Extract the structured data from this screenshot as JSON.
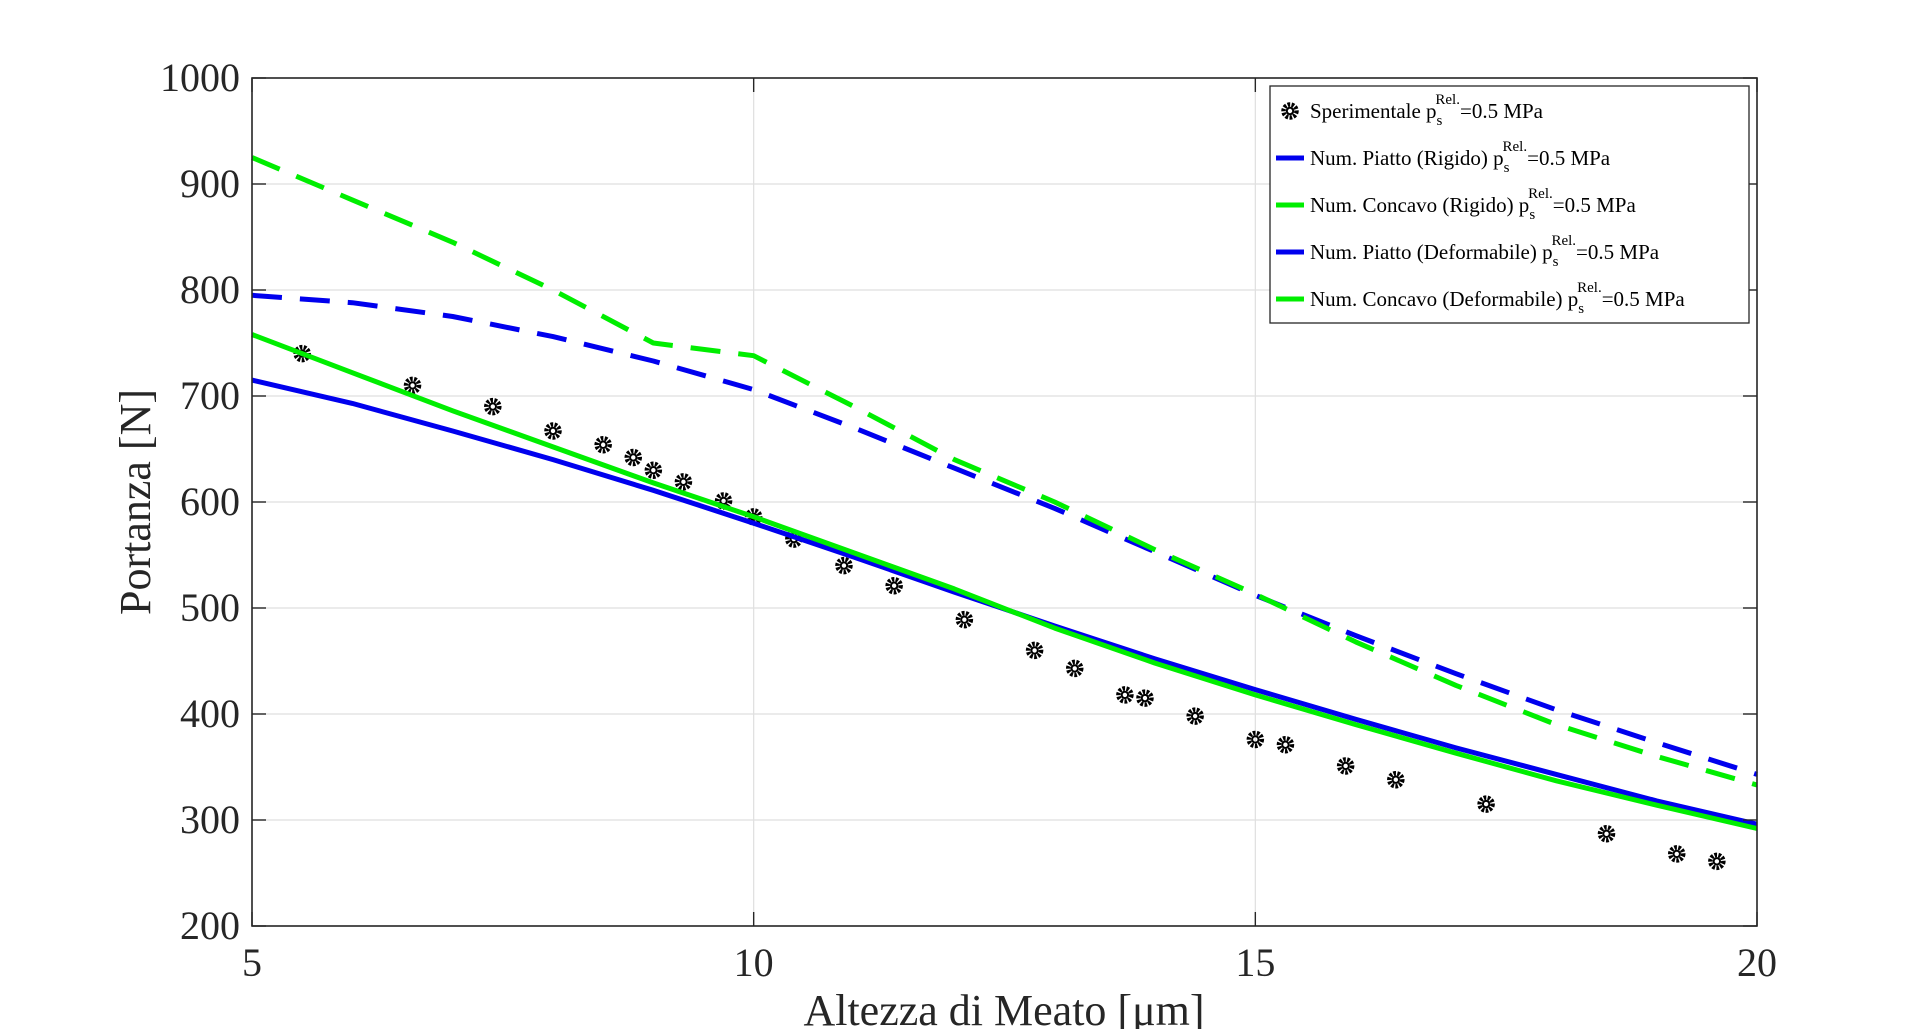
{
  "chart_data": {
    "type": "line",
    "xlabel": "Altezza di Meato [μm]",
    "ylabel": "Portanza [N]",
    "xlim": [
      5,
      20
    ],
    "ylim": [
      200,
      1000
    ],
    "xticks": [
      "5",
      "10",
      "15",
      "20"
    ],
    "yticks": [
      "200",
      "300",
      "400",
      "500",
      "600",
      "700",
      "800",
      "900",
      "1000"
    ],
    "grid": true,
    "legend_position": "top-right",
    "colors": {
      "blue": "#0000ee",
      "green": "#00ee00",
      "markers": "#000000"
    },
    "series": [
      {
        "name": "Sperimentale p_s^Rel.=0.5 MPa",
        "legend_main": "Sperimentale p",
        "legend_sub": "s",
        "legend_sup": "Rel.",
        "legend_tail": "=0.5 MPa",
        "style": "markers",
        "color": "#000000",
        "x": [
          5.5,
          6.6,
          7.4,
          8.0,
          8.5,
          8.8,
          9.0,
          9.3,
          9.7,
          10.0,
          10.4,
          10.9,
          11.4,
          12.1,
          12.8,
          13.2,
          13.7,
          13.9,
          14.4,
          15.0,
          15.3,
          15.9,
          16.4,
          17.3,
          18.5,
          19.2,
          19.6
        ],
        "y": [
          740,
          710,
          690,
          667,
          654,
          642,
          630,
          619,
          601,
          586,
          565,
          540,
          521,
          489,
          460,
          443,
          418,
          415,
          398,
          376,
          371,
          351,
          338,
          315,
          287,
          268,
          261
        ]
      },
      {
        "name": "Num. Piatto (Rigido) p_s^Rel.=0.5 MPa",
        "legend_main": "Num. Piatto (Rigido) p",
        "legend_sub": "s",
        "legend_sup": "Rel.",
        "legend_tail": "=0.5 MPa",
        "style": "dashed",
        "color": "#0000ee",
        "x": [
          5,
          6,
          7,
          8,
          9,
          10,
          11,
          12,
          13,
          14,
          15,
          16,
          17,
          18,
          19,
          20
        ],
        "y": [
          795,
          788,
          775,
          756,
          733,
          706,
          670,
          632,
          594,
          553,
          512,
          474,
          438,
          404,
          373,
          343
        ]
      },
      {
        "name": "Num. Concavo (Rigido) p_s^Rel.=0.5 MPa",
        "legend_main": "Num. Concavo (Rigido) p",
        "legend_sub": "s",
        "legend_sup": "Rel.",
        "legend_tail": "=0.5 MPa",
        "style": "dashed",
        "color": "#00ee00",
        "x": [
          5,
          6,
          7,
          8,
          9,
          10,
          11,
          12,
          13,
          14,
          15,
          16,
          17,
          18,
          19,
          20
        ],
        "y": [
          925,
          885,
          845,
          800,
          750,
          738,
          690,
          640,
          600,
          555,
          513,
          468,
          427,
          390,
          360,
          333
        ]
      },
      {
        "name": "Num. Piatto (Deformabile) p_s^Rel.=0.5 MPa",
        "legend_main": "Num. Piatto (Deformabile) p",
        "legend_sub": "s",
        "legend_sup": "Rel.",
        "legend_tail": "=0.5 MPa",
        "style": "solid",
        "color": "#0000ee",
        "x": [
          5,
          6,
          7,
          8,
          9,
          10,
          11,
          12,
          13,
          14,
          15,
          16,
          17,
          18,
          19,
          20
        ],
        "y": [
          715,
          693,
          667,
          640,
          611,
          580,
          548,
          515,
          483,
          452,
          423,
          395,
          368,
          343,
          318,
          296
        ]
      },
      {
        "name": "Num. Concavo (Deformabile) p_s^Rel.=0.5 MPa",
        "legend_main": "Num. Concavo (Deformabile) p",
        "legend_sub": "s",
        "legend_sup": "Rel.",
        "legend_tail": "=0.5 MPa",
        "style": "solid",
        "color": "#00ee00",
        "x": [
          5,
          6,
          7,
          8,
          9,
          10,
          11,
          12,
          13,
          14,
          15,
          16,
          17,
          18,
          19,
          20
        ],
        "y": [
          758,
          722,
          686,
          652,
          618,
          586,
          552,
          518,
          481,
          448,
          418,
          390,
          363,
          337,
          314,
          292
        ]
      }
    ]
  }
}
